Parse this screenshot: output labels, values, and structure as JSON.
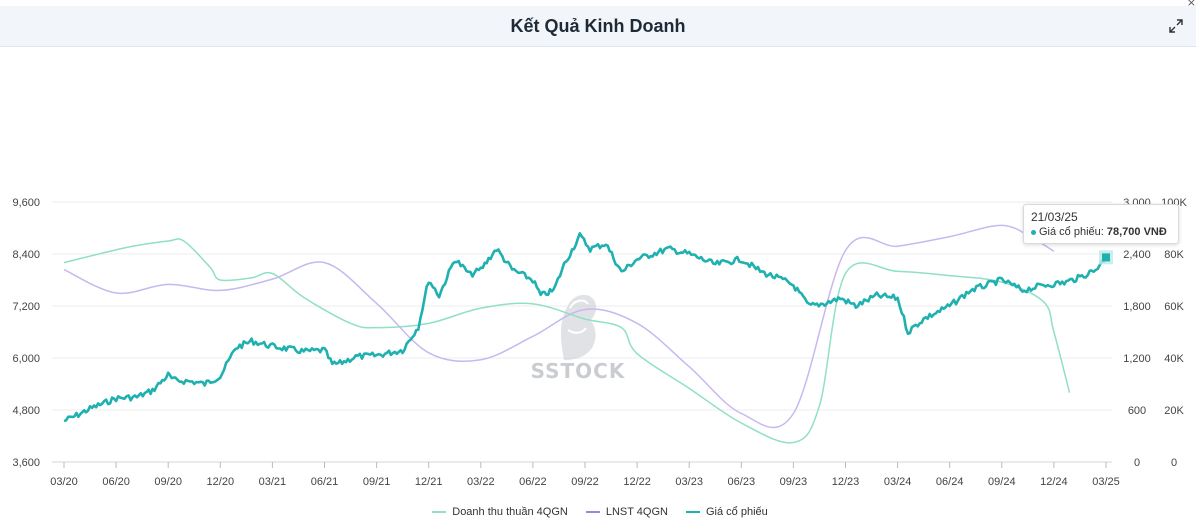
{
  "header": {
    "title": "Kết Quả Kinh Doanh",
    "close_symbol": "×",
    "expand_icon": "expand-icon"
  },
  "tooltip": {
    "date": "21/03/25",
    "label": "Giá cổ phiếu:",
    "value": "78,700 VNĐ"
  },
  "watermark": "SSTOCK",
  "colors": {
    "revenue": "#8fe0c4",
    "lnst": "#c8b8f0",
    "price": "#1fb0b0",
    "grid": "#eeeeee"
  },
  "chart_data": {
    "type": "line",
    "x_ticks": [
      "03/20",
      "06/20",
      "09/20",
      "12/20",
      "03/21",
      "06/21",
      "09/21",
      "12/21",
      "03/22",
      "06/22",
      "09/22",
      "12/22",
      "03/23",
      "06/23",
      "09/23",
      "12/23",
      "03/24",
      "06/24",
      "09/24",
      "12/24",
      "03/25"
    ],
    "y_left": {
      "ticks": [
        "3,600",
        "4,800",
        "6,000",
        "7,200",
        "8,400",
        "9,600"
      ],
      "range": [
        3600,
        9600
      ],
      "series": "Doanh thu thuần 4QGN"
    },
    "y_right1": {
      "ticks": [
        "0",
        "600",
        "1,200",
        "1,800",
        "2,400",
        "3,000"
      ],
      "range": [
        0,
        3000
      ],
      "series": "LNST 4QGN"
    },
    "y_right2": {
      "ticks": [
        "0",
        "20K",
        "40K",
        "60K",
        "80K",
        "100K"
      ],
      "range": [
        0,
        100000
      ],
      "series": "Giá cổ phiếu"
    },
    "series": [
      {
        "name": "Doanh thu thuần 4QGN",
        "axis": "left",
        "points": [
          [
            0,
            8200
          ],
          [
            1.2,
            8550
          ],
          [
            2,
            8700
          ],
          [
            2.3,
            8700
          ],
          [
            2.8,
            8100
          ],
          [
            3,
            7800
          ],
          [
            3.6,
            7850
          ],
          [
            4,
            7950
          ],
          [
            4.6,
            7400
          ],
          [
            5.5,
            6800
          ],
          [
            6,
            6700
          ],
          [
            7,
            6800
          ],
          [
            8,
            7150
          ],
          [
            9,
            7250
          ],
          [
            10,
            6900
          ],
          [
            10.7,
            6700
          ],
          [
            11,
            6100
          ],
          [
            12,
            5300
          ],
          [
            13,
            4500
          ],
          [
            14,
            4050
          ],
          [
            14.5,
            4900
          ],
          [
            15,
            7950
          ],
          [
            16,
            8000
          ],
          [
            17,
            7900
          ],
          [
            18,
            7750
          ],
          [
            18.8,
            7300
          ],
          [
            19,
            6600
          ],
          [
            19.3,
            5200
          ]
        ]
      },
      {
        "name": "LNST 4QGN",
        "axis": "right1",
        "points": [
          [
            0,
            2220
          ],
          [
            1,
            1950
          ],
          [
            2,
            2050
          ],
          [
            3,
            1980
          ],
          [
            4,
            2110
          ],
          [
            5,
            2300
          ],
          [
            6,
            1830
          ],
          [
            7,
            1260
          ],
          [
            8,
            1180
          ],
          [
            9,
            1450
          ],
          [
            10,
            1760
          ],
          [
            11,
            1600
          ],
          [
            12,
            1100
          ],
          [
            13,
            560
          ],
          [
            14,
            560
          ],
          [
            15,
            2440
          ],
          [
            16,
            2490
          ],
          [
            17,
            2600
          ],
          [
            18,
            2730
          ],
          [
            18.6,
            2580
          ],
          [
            19,
            2430
          ]
        ]
      },
      {
        "name": "Giá cổ phiếu",
        "axis": "right2",
        "points": [
          [
            0,
            15800
          ],
          [
            0.2,
            17500
          ],
          [
            0.5,
            20500
          ],
          [
            1,
            24500
          ],
          [
            1.4,
            25000
          ],
          [
            1.7,
            27500
          ],
          [
            2,
            33500
          ],
          [
            2.1,
            31500
          ],
          [
            2.5,
            30800
          ],
          [
            2.7,
            30000
          ],
          [
            3,
            33000
          ],
          [
            3.3,
            44000
          ],
          [
            3.6,
            46500
          ],
          [
            4,
            44500
          ],
          [
            4.6,
            42500
          ],
          [
            5,
            43000
          ],
          [
            5.15,
            37500
          ],
          [
            5.3,
            38000
          ],
          [
            5.6,
            40500
          ],
          [
            6,
            41000
          ],
          [
            6.2,
            41800
          ],
          [
            6.5,
            43000
          ],
          [
            6.8,
            52000
          ],
          [
            7,
            70000
          ],
          [
            7.2,
            64000
          ],
          [
            7.5,
            78000
          ],
          [
            7.8,
            72000
          ],
          [
            8,
            74000
          ],
          [
            8.3,
            82000
          ],
          [
            8.6,
            74000
          ],
          [
            9,
            70000
          ],
          [
            9.15,
            64000
          ],
          [
            9.4,
            66000
          ],
          [
            9.6,
            76000
          ],
          [
            9.9,
            87000
          ],
          [
            10.1,
            82000
          ],
          [
            10.4,
            84000
          ],
          [
            10.7,
            73000
          ],
          [
            11,
            78000
          ],
          [
            11.6,
            82000
          ],
          [
            12,
            80000
          ],
          [
            12.5,
            76000
          ],
          [
            13,
            78000
          ],
          [
            13.4,
            73000
          ],
          [
            13.8,
            70000
          ],
          [
            14,
            68000
          ],
          [
            14.3,
            60000
          ],
          [
            14.6,
            61000
          ],
          [
            14.9,
            63000
          ],
          [
            15.2,
            60000
          ],
          [
            15.6,
            64000
          ],
          [
            16,
            63000
          ],
          [
            16.2,
            50000
          ],
          [
            16.5,
            55000
          ],
          [
            17,
            60000
          ],
          [
            17.4,
            66000
          ],
          [
            18,
            70000
          ],
          [
            18.4,
            66000
          ],
          [
            18.8,
            68000
          ],
          [
            19.2,
            69000
          ],
          [
            19.5,
            71000
          ],
          [
            19.8,
            74000
          ],
          [
            20,
            78700
          ]
        ]
      }
    ],
    "highlight": {
      "date": "21/03/25",
      "series": "Giá cổ phiếu",
      "value": 78700,
      "x": 20
    },
    "legend": [
      {
        "label": "Doanh thu thuần 4QGN",
        "color": "#8fe0c4"
      },
      {
        "label": "LNST 4QGN",
        "color": "#9f84e6"
      },
      {
        "label": "Giá cổ phiếu",
        "color": "#1fb0b0"
      }
    ]
  }
}
